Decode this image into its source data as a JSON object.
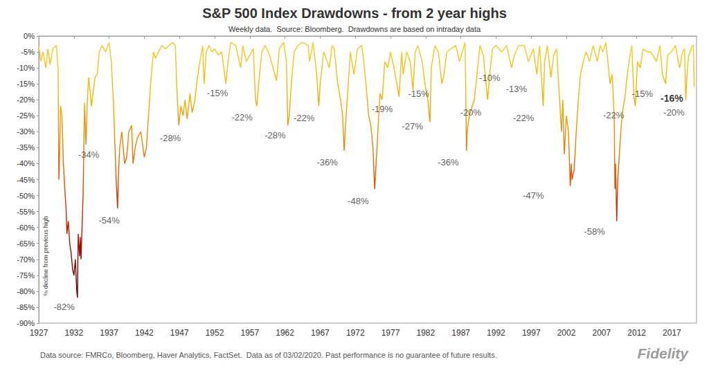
{
  "chart_data": {
    "type": "line",
    "title": "S&P 500 Index Drawdowns - from 2 year highs",
    "subtitle": "Weekly data.  Source: Bloomberg.  Drawdowns are based on intraday data",
    "y_label": "% decline from previous high",
    "x": [
      1927,
      1927.3,
      1927.6,
      1928,
      1928.3,
      1928.6,
      1929,
      1929.5,
      1929.75,
      1929.85,
      1929.95,
      1930.1,
      1930.3,
      1930.5,
      1930.7,
      1930.9,
      1931,
      1931.2,
      1931.4,
      1931.6,
      1931.8,
      1932,
      1932.2,
      1932.4,
      1932.5,
      1932.6,
      1932.8,
      1932.9,
      1933,
      1933.3,
      1933.5,
      1933.7,
      1933.9,
      1934.1,
      1934.5,
      1934.7,
      1935,
      1935.3,
      1935.6,
      1936,
      1936.5,
      1937,
      1937.3,
      1937.6,
      1937.8,
      1938,
      1938.2,
      1938.3,
      1938.5,
      1938.8,
      1939.2,
      1939.5,
      1939.8,
      1940.2,
      1940.4,
      1940.7,
      1941,
      1941.5,
      1942,
      1942.3,
      1942.6,
      1942.9,
      1943.3,
      1943.6,
      1944,
      1944.5,
      1945,
      1945.5,
      1946,
      1946.4,
      1946.7,
      1946.9,
      1947.2,
      1947.5,
      1947.8,
      1948.1,
      1948.5,
      1948.8,
      1949.2,
      1949.5,
      1949.9,
      1950.3,
      1950.5,
      1950.8,
      1951.2,
      1951.6,
      1952,
      1952.5,
      1953,
      1953.6,
      1953.9,
      1954.3,
      1955,
      1955.7,
      1956,
      1956.5,
      1957,
      1957.5,
      1957.8,
      1958,
      1958.3,
      1958.7,
      1959.2,
      1959.8,
      1960.3,
      1960.8,
      1961.2,
      1961.8,
      1962.2,
      1962.4,
      1962.6,
      1962.9,
      1963.3,
      1963.8,
      1964.5,
      1965.3,
      1965.5,
      1966,
      1966.5,
      1966.8,
      1967,
      1967.5,
      1968,
      1968.3,
      1968.7,
      1969,
      1969.5,
      1969.9,
      1970.2,
      1970.4,
      1970.6,
      1970.9,
      1971.3,
      1971.8,
      1972.3,
      1972.9,
      1973.2,
      1973.5,
      1973.9,
      1974.2,
      1974.5,
      1974.75,
      1974.9,
      1975.2,
      1975.5,
      1975.8,
      1976.2,
      1976.6,
      1977,
      1977.5,
      1977.9,
      1978.2,
      1978.6,
      1978.8,
      1979.3,
      1979.8,
      1980.2,
      1980.5,
      1980.9,
      1981.5,
      1981.9,
      1982.3,
      1982.6,
      1982.8,
      1983.3,
      1983.8,
      1984.3,
      1984.6,
      1985,
      1985.6,
      1986.3,
      1986.8,
      1987.6,
      1987.8,
      1987.9,
      1988.2,
      1988.6,
      1988.9,
      1989.3,
      1989.7,
      1990.2,
      1990.8,
      1991.1,
      1991.5,
      1992,
      1992.8,
      1993.5,
      1994.2,
      1994.6,
      1995.2,
      1996,
      1996.6,
      1997.3,
      1997.8,
      1998.2,
      1998.7,
      1998.9,
      1999.3,
      1999.8,
      2000.2,
      2000.6,
      2000.9,
      2001.3,
      2001.5,
      2001.7,
      2002,
      2002.3,
      2002.55,
      2002.7,
      2002.8,
      2003.1,
      2003.4,
      2003.7,
      2004,
      2004.4,
      2004.8,
      2005.3,
      2005.8,
      2006.4,
      2006.8,
      2007.2,
      2007.6,
      2007.9,
      2008.2,
      2008.5,
      2008.8,
      2008.9,
      2009,
      2009.15,
      2009.3,
      2009.5,
      2009.8,
      2010.1,
      2010.4,
      2010.5,
      2010.9,
      2011.3,
      2011.6,
      2011.8,
      2012.1,
      2012.5,
      2012.9,
      2013.5,
      2014,
      2014.8,
      2015.3,
      2015.65,
      2016.1,
      2016.4,
      2016.9,
      2017.5,
      2018.1,
      2018.5,
      2018.8,
      2018.97,
      2019.2,
      2019.4,
      2019.6,
      2019.9,
      2020.05,
      2020.17
    ],
    "values": [
      -3,
      -8,
      -5,
      -10,
      -4,
      -9,
      -4,
      -3,
      -10,
      -45,
      -38,
      -22,
      -25,
      -40,
      -48,
      -55,
      -62,
      -58,
      -65,
      -68,
      -73,
      -75,
      -70,
      -80,
      -82,
      -62,
      -69,
      -63,
      -70,
      -50,
      -21,
      -34,
      -20,
      -13,
      -22,
      -18,
      -13,
      -12,
      -5,
      -3,
      -5,
      -2,
      -8,
      -20,
      -33,
      -45,
      -54,
      -45,
      -35,
      -30,
      -40,
      -38,
      -30,
      -28,
      -40,
      -35,
      -32,
      -30,
      -38,
      -35,
      -25,
      -15,
      -5,
      -7,
      -5,
      -3,
      -4,
      -3,
      -2,
      -3,
      -20,
      -28,
      -22,
      -25,
      -20,
      -26,
      -18,
      -24,
      -20,
      -14,
      -8,
      -3,
      -15,
      -5,
      -3,
      -5,
      -4,
      -6,
      -5,
      -15,
      -8,
      -2,
      -3,
      -10,
      -3,
      -8,
      -6,
      -4,
      -20,
      -22,
      -14,
      -5,
      -3,
      -6,
      -10,
      -14,
      -4,
      -2,
      -8,
      -28,
      -25,
      -15,
      -5,
      -3,
      -2,
      -3,
      -8,
      -2,
      -12,
      -22,
      -15,
      -5,
      -8,
      -10,
      -3,
      -4,
      -15,
      -20,
      -25,
      -36,
      -28,
      -18,
      -5,
      -12,
      -4,
      -3,
      -8,
      -15,
      -25,
      -28,
      -35,
      -48,
      -42,
      -30,
      -18,
      -20,
      -8,
      -10,
      -5,
      -10,
      -15,
      -19,
      -5,
      -12,
      -5,
      -8,
      -17,
      -5,
      -3,
      -8,
      -15,
      -20,
      -27,
      -10,
      -3,
      -5,
      -15,
      -12,
      -5,
      -4,
      -3,
      -8,
      -2,
      -36,
      -30,
      -25,
      -22,
      -20,
      -12,
      -3,
      -6,
      -20,
      -12,
      -4,
      -3,
      -5,
      -3,
      -10,
      -6,
      -3,
      -3,
      -8,
      -4,
      -12,
      -3,
      -22,
      -8,
      -3,
      -13,
      -6,
      -4,
      -15,
      -30,
      -20,
      -37,
      -25,
      -30,
      -47,
      -40,
      -45,
      -42,
      -30,
      -20,
      -12,
      -8,
      -5,
      -8,
      -3,
      -8,
      -3,
      -5,
      -2,
      -8,
      -15,
      -12,
      -25,
      -48,
      -40,
      -58,
      -45,
      -38,
      -28,
      -22,
      -18,
      -15,
      -8,
      -3,
      -19,
      -22,
      -8,
      -10,
      -4,
      -5,
      -5,
      -8,
      -3,
      -12,
      -15,
      -6,
      -5,
      -3,
      -10,
      -5,
      -4,
      -20,
      -10,
      -6,
      -5,
      -3,
      -3,
      -16
    ],
    "xlim": [
      1927,
      2020.5
    ],
    "xticks": [
      1927,
      1932,
      1937,
      1942,
      1947,
      1952,
      1957,
      1962,
      1967,
      1972,
      1977,
      1982,
      1987,
      1992,
      1997,
      2002,
      2007,
      2012,
      2017
    ],
    "ylim": [
      -90,
      0
    ],
    "yticks": [
      {
        "value": 0,
        "label": "0%"
      },
      {
        "value": -5,
        "label": "-5%"
      },
      {
        "value": -10,
        "label": "-10%"
      },
      {
        "value": -15,
        "label": "-15%"
      },
      {
        "value": -20,
        "label": "-20%"
      },
      {
        "value": -25,
        "label": "-25%"
      },
      {
        "value": -30,
        "label": "-30%"
      },
      {
        "value": -35,
        "label": "-35%"
      },
      {
        "value": -40,
        "label": "-40%"
      },
      {
        "value": -45,
        "label": "-45%"
      },
      {
        "value": -50,
        "label": "-50%"
      },
      {
        "value": -55,
        "label": "-55%"
      },
      {
        "value": -60,
        "label": "-60%"
      },
      {
        "value": -65,
        "label": "-65%"
      },
      {
        "value": -70,
        "label": "-70%"
      },
      {
        "value": -75,
        "label": "-75%"
      },
      {
        "value": -80,
        "label": "-80%"
      },
      {
        "value": -85,
        "label": "-85%"
      },
      {
        "value": -90,
        "label": "-90%"
      }
    ],
    "grid": false,
    "annotations": [
      {
        "x": 1930.6,
        "y": -85,
        "text": "-82%"
      },
      {
        "x": 1934.1,
        "y": -37.3,
        "text": "-34%"
      },
      {
        "x": 1937,
        "y": -57.7,
        "text": "-54%"
      },
      {
        "x": 1945.7,
        "y": -31.9,
        "text": "-28%"
      },
      {
        "x": 1952.4,
        "y": -17.8,
        "text": "-15%"
      },
      {
        "x": 1955.9,
        "y": -25.4,
        "text": "-22%"
      },
      {
        "x": 1960.6,
        "y": -31.2,
        "text": "-28%"
      },
      {
        "x": 1964.7,
        "y": -25.6,
        "text": "-22%"
      },
      {
        "x": 1968,
        "y": -39.5,
        "text": "-36%"
      },
      {
        "x": 1972.4,
        "y": -51.8,
        "text": "-48%"
      },
      {
        "x": 1975.8,
        "y": -22.8,
        "text": "-19%"
      },
      {
        "x": 1981,
        "y": -18,
        "text": "-15%"
      },
      {
        "x": 1980.1,
        "y": -28.4,
        "text": "-27%"
      },
      {
        "x": 1985.2,
        "y": -39.5,
        "text": "-36%"
      },
      {
        "x": 1988.4,
        "y": -23.9,
        "text": "-20%"
      },
      {
        "x": 1991.1,
        "y": -13.2,
        "text": "-10%"
      },
      {
        "x": 1994.9,
        "y": -16.5,
        "text": "-13%"
      },
      {
        "x": 1995.9,
        "y": -25.6,
        "text": "-22%"
      },
      {
        "x": 1997.3,
        "y": -49.9,
        "text": "-47%"
      },
      {
        "x": 2006,
        "y": -61.2,
        "text": "-58%"
      },
      {
        "x": 2008.7,
        "y": -24.9,
        "text": "-22%"
      },
      {
        "x": 2012.8,
        "y": -18,
        "text": "-15%"
      },
      {
        "x": 2017.3,
        "y": -24,
        "text": "-20%"
      },
      {
        "x": 2017,
        "y": -19.5,
        "text": "-16%"
      }
    ],
    "footnote": "Data source: FMRCo, Bloomberg, Haver Analytics, FactSet.  Data as of 03/02/2020. Past performance is no guarantee of future results.",
    "logo": "Fidelity"
  }
}
